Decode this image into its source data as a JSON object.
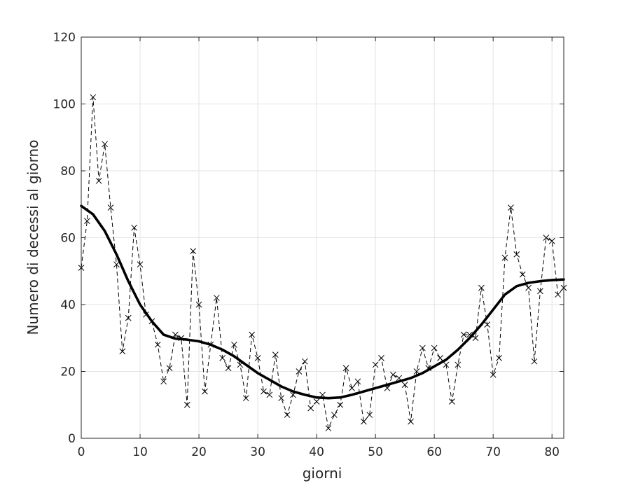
{
  "chart_data": {
    "type": "line",
    "xlabel": "giorni",
    "ylabel": "Numero di decessi al giorno",
    "xlim": [
      0,
      82
    ],
    "ylim": [
      0,
      120
    ],
    "xticks": [
      0,
      10,
      20,
      30,
      40,
      50,
      60,
      70,
      80
    ],
    "yticks": [
      0,
      20,
      40,
      60,
      80,
      100,
      120
    ],
    "grid": true,
    "series": [
      {
        "style": "dashed-with-x-markers",
        "color": "#000000",
        "x": [
          0,
          1,
          2,
          3,
          4,
          5,
          6,
          7,
          8,
          9,
          10,
          11,
          12,
          13,
          14,
          15,
          16,
          17,
          18,
          19,
          20,
          21,
          22,
          23,
          24,
          25,
          26,
          27,
          28,
          29,
          30,
          31,
          32,
          33,
          34,
          35,
          36,
          37,
          38,
          39,
          40,
          41,
          42,
          43,
          44,
          45,
          46,
          47,
          48,
          49,
          50,
          51,
          52,
          53,
          54,
          55,
          56,
          57,
          58,
          59,
          60,
          61,
          62,
          63,
          64,
          65,
          66,
          67,
          68,
          69,
          70,
          71,
          72,
          73,
          74,
          75,
          76,
          77,
          78,
          79,
          80,
          81,
          82
        ],
        "values": [
          51,
          65,
          102,
          77,
          88,
          69,
          52,
          26,
          36,
          63,
          52,
          37,
          35,
          28,
          17,
          21,
          31,
          30,
          10,
          56,
          40,
          14,
          28,
          42,
          24,
          21,
          28,
          22,
          12,
          31,
          24,
          14,
          13,
          25,
          12,
          7,
          13,
          20,
          23,
          9,
          11,
          13,
          3,
          7,
          10,
          21,
          15,
          17,
          5,
          7,
          22,
          24,
          15,
          19,
          18,
          16,
          5,
          20,
          27,
          21,
          27,
          24,
          22,
          11,
          22,
          31,
          31,
          30,
          45,
          34,
          19,
          24,
          54,
          69,
          55,
          49,
          45,
          23,
          44,
          60,
          59,
          43,
          45
        ]
      },
      {
        "style": "solid-thick",
        "color": "#000000",
        "x": [
          0,
          2,
          4,
          6,
          8,
          10,
          12,
          14,
          16,
          18,
          20,
          22,
          24,
          26,
          28,
          30,
          32,
          34,
          36,
          38,
          40,
          42,
          44,
          46,
          48,
          50,
          52,
          54,
          56,
          58,
          60,
          62,
          64,
          66,
          68,
          70,
          72,
          74,
          76,
          78,
          80,
          82
        ],
        "values": [
          69.5,
          67,
          62,
          55,
          47,
          40,
          35,
          31,
          29.8,
          29.5,
          29,
          28,
          26.5,
          24.5,
          22,
          19.5,
          17.5,
          15.5,
          14,
          13,
          12.2,
          12,
          12.2,
          13,
          14,
          15,
          16,
          17,
          18,
          19.5,
          21.5,
          23.5,
          26.5,
          30,
          34,
          38.5,
          43,
          45.5,
          46.5,
          47,
          47.3,
          47.5
        ]
      }
    ]
  }
}
